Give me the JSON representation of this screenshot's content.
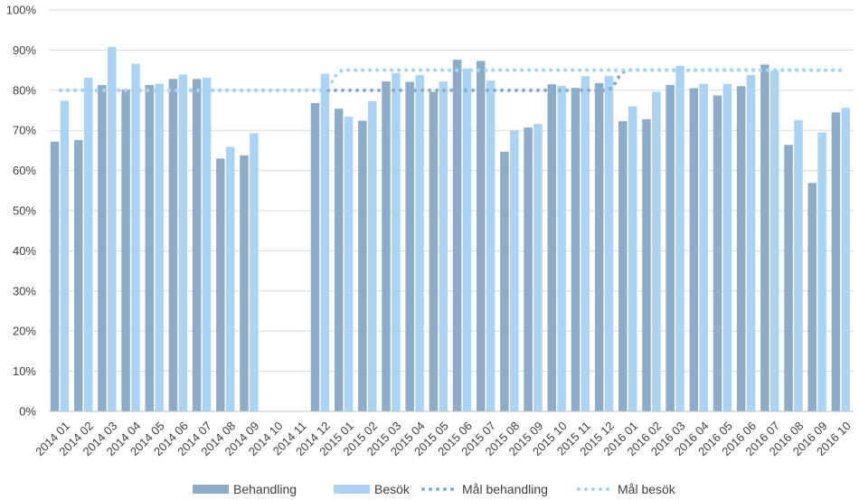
{
  "chart_data": {
    "type": "bar",
    "title": "",
    "xlabel": "",
    "ylabel": "",
    "ylim": [
      0,
      100
    ],
    "yticks": [
      0,
      10,
      20,
      30,
      40,
      50,
      60,
      70,
      80,
      90,
      100
    ],
    "ytick_labels": [
      "0%",
      "10%",
      "20%",
      "30%",
      "40%",
      "50%",
      "60%",
      "70%",
      "80%",
      "90%",
      "100%"
    ],
    "grid": true,
    "legend_position": "bottom",
    "categories": [
      "2014 01",
      "2014 02",
      "2014 03",
      "2014 04",
      "2014 05",
      "2014 06",
      "2014 07",
      "2014 08",
      "2014 09",
      "2014 10",
      "2014 11",
      "2014 12",
      "2015 01",
      "2015 02",
      "2015 03",
      "2015 04",
      "2015 05",
      "2015 06",
      "2015 07",
      "2015 08",
      "2015 09",
      "2015 10",
      "2015 11",
      "2015 12",
      "2016 01",
      "2016 02",
      "2016 03",
      "2016 04",
      "2016 05",
      "2016 06",
      "2016 07",
      "2016 08",
      "2016 09",
      "2016 10"
    ],
    "series": [
      {
        "name": "Behandling",
        "kind": "bar",
        "color": "#8eacc8",
        "values": [
          67.2,
          67.6,
          81.3,
          80.2,
          81.3,
          82.8,
          82.8,
          63.0,
          63.8,
          null,
          null,
          76.8,
          75.4,
          72.4,
          82.2,
          82.1,
          79.6,
          87.6,
          87.3,
          64.7,
          70.7,
          81.5,
          80.6,
          81.8,
          72.3,
          72.8,
          81.3,
          80.5,
          78.7,
          81.0,
          86.4,
          66.4,
          56.9,
          74.5
        ]
      },
      {
        "name": "Besök",
        "kind": "bar",
        "color": "#acd4f2",
        "values": [
          77.4,
          83.1,
          90.8,
          86.6,
          81.6,
          83.9,
          83.1,
          65.9,
          69.3,
          null,
          null,
          84.1,
          73.4,
          77.3,
          84.3,
          83.8,
          82.2,
          85.4,
          82.4,
          70.0,
          71.6,
          81.1,
          83.5,
          83.6,
          76.0,
          79.6,
          86.1,
          81.6,
          81.6,
          83.8,
          84.9,
          72.6,
          69.5,
          75.6
        ]
      },
      {
        "name": "Mål behandling",
        "kind": "dotted-line",
        "color": "#8eacc8",
        "values": [
          80,
          80,
          80,
          80,
          80,
          80,
          80,
          80,
          80,
          80,
          80,
          80,
          80,
          80,
          80,
          80,
          80,
          80,
          80,
          80,
          80,
          80,
          80,
          80,
          85,
          85,
          85,
          85,
          85,
          85,
          85,
          85,
          85,
          85
        ]
      },
      {
        "name": "Mål besök",
        "kind": "dotted-line",
        "color": "#acd4f2",
        "values": [
          80,
          80,
          80,
          80,
          80,
          80,
          80,
          80,
          80,
          80,
          80,
          80,
          85,
          85,
          85,
          85,
          85,
          85,
          85,
          85,
          85,
          85,
          85,
          85,
          85,
          85,
          85,
          85,
          85,
          85,
          85,
          85,
          85,
          85
        ]
      }
    ]
  }
}
